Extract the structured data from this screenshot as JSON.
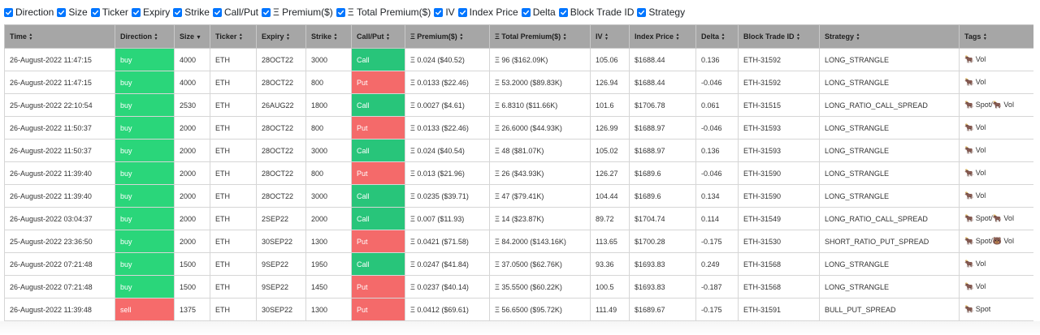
{
  "toggles": [
    {
      "label": "Direction",
      "checked": true
    },
    {
      "label": "Size",
      "checked": true
    },
    {
      "label": "Ticker",
      "checked": true
    },
    {
      "label": "Expiry",
      "checked": true
    },
    {
      "label": "Strike",
      "checked": true
    },
    {
      "label": "Call/Put",
      "checked": true
    },
    {
      "label": "Ξ Premium($)",
      "checked": true
    },
    {
      "label": "Ξ Total Premium($)",
      "checked": true
    },
    {
      "label": "IV",
      "checked": true
    },
    {
      "label": "Index Price",
      "checked": true
    },
    {
      "label": "Delta",
      "checked": true
    },
    {
      "label": "Block Trade ID",
      "checked": true
    },
    {
      "label": "Strategy",
      "checked": true
    }
  ],
  "columns": [
    {
      "label": "Time",
      "sort": "both"
    },
    {
      "label": "Direction",
      "sort": "both"
    },
    {
      "label": "Size",
      "sort": "desc"
    },
    {
      "label": "Ticker",
      "sort": "both"
    },
    {
      "label": "Expiry",
      "sort": "both"
    },
    {
      "label": "Strike",
      "sort": "both"
    },
    {
      "label": "Call/Put",
      "sort": "both"
    },
    {
      "label": "Ξ Premium($)",
      "sort": "both"
    },
    {
      "label": "Ξ Total Premium($)",
      "sort": "both"
    },
    {
      "label": "IV",
      "sort": "both"
    },
    {
      "label": "Index Price",
      "sort": "both"
    },
    {
      "label": "Delta",
      "sort": "both"
    },
    {
      "label": "Block Trade ID",
      "sort": "both"
    },
    {
      "label": "Strategy",
      "sort": "both"
    },
    {
      "label": "Tags",
      "sort": "both"
    }
  ],
  "rows": [
    [
      "26-August-2022 11:47:15",
      "buy",
      "4000",
      "ETH",
      "28OCT22",
      "3000",
      "Call",
      "Ξ 0.024 ($40.52)",
      "Ξ 96 ($162.09K)",
      "105.06",
      "$1688.44",
      "0.136",
      "ETH-31592",
      "LONG_STRANGLE",
      "🐂 Vol"
    ],
    [
      "26-August-2022 11:47:15",
      "buy",
      "4000",
      "ETH",
      "28OCT22",
      "800",
      "Put",
      "Ξ 0.0133 ($22.46)",
      "Ξ 53.2000 ($89.83K)",
      "126.94",
      "$1688.44",
      "-0.046",
      "ETH-31592",
      "LONG_STRANGLE",
      "🐂 Vol"
    ],
    [
      "25-August-2022 22:10:54",
      "buy",
      "2530",
      "ETH",
      "26AUG22",
      "1800",
      "Call",
      "Ξ 0.0027 ($4.61)",
      "Ξ 6.8310 ($11.66K)",
      "101.6",
      "$1706.78",
      "0.061",
      "ETH-31515",
      "LONG_RATIO_CALL_SPREAD",
      "🐂 Spot/🐂 Vol"
    ],
    [
      "26-August-2022 11:50:37",
      "buy",
      "2000",
      "ETH",
      "28OCT22",
      "800",
      "Put",
      "Ξ 0.0133 ($22.46)",
      "Ξ 26.6000 ($44.93K)",
      "126.99",
      "$1688.97",
      "-0.046",
      "ETH-31593",
      "LONG_STRANGLE",
      "🐂 Vol"
    ],
    [
      "26-August-2022 11:50:37",
      "buy",
      "2000",
      "ETH",
      "28OCT22",
      "3000",
      "Call",
      "Ξ 0.024 ($40.54)",
      "Ξ 48 ($81.07K)",
      "105.02",
      "$1688.97",
      "0.136",
      "ETH-31593",
      "LONG_STRANGLE",
      "🐂 Vol"
    ],
    [
      "26-August-2022 11:39:40",
      "buy",
      "2000",
      "ETH",
      "28OCT22",
      "800",
      "Put",
      "Ξ 0.013 ($21.96)",
      "Ξ 26 ($43.93K)",
      "126.27",
      "$1689.6",
      "-0.046",
      "ETH-31590",
      "LONG_STRANGLE",
      "🐂 Vol"
    ],
    [
      "26-August-2022 11:39:40",
      "buy",
      "2000",
      "ETH",
      "28OCT22",
      "3000",
      "Call",
      "Ξ 0.0235 ($39.71)",
      "Ξ 47 ($79.41K)",
      "104.44",
      "$1689.6",
      "0.134",
      "ETH-31590",
      "LONG_STRANGLE",
      "🐂 Vol"
    ],
    [
      "26-August-2022 03:04:37",
      "buy",
      "2000",
      "ETH",
      "2SEP22",
      "2000",
      "Call",
      "Ξ 0.007 ($11.93)",
      "Ξ 14 ($23.87K)",
      "89.72",
      "$1704.74",
      "0.114",
      "ETH-31549",
      "LONG_RATIO_CALL_SPREAD",
      "🐂 Spot/🐂 Vol"
    ],
    [
      "25-August-2022 23:36:50",
      "buy",
      "2000",
      "ETH",
      "30SEP22",
      "1300",
      "Put",
      "Ξ 0.0421 ($71.58)",
      "Ξ 84.2000 ($143.16K)",
      "113.65",
      "$1700.28",
      "-0.175",
      "ETH-31530",
      "SHORT_RATIO_PUT_SPREAD",
      "🐂 Spot/🐻 Vol"
    ],
    [
      "26-August-2022 07:21:48",
      "buy",
      "1500",
      "ETH",
      "9SEP22",
      "1950",
      "Call",
      "Ξ 0.0247 ($41.84)",
      "Ξ 37.0500 ($62.76K)",
      "93.36",
      "$1693.83",
      "0.249",
      "ETH-31568",
      "LONG_STRANGLE",
      "🐂 Vol"
    ],
    [
      "26-August-2022 07:21:48",
      "buy",
      "1500",
      "ETH",
      "9SEP22",
      "1450",
      "Put",
      "Ξ 0.0237 ($40.14)",
      "Ξ 35.5500 ($60.22K)",
      "100.5",
      "$1693.83",
      "-0.187",
      "ETH-31568",
      "LONG_STRANGLE",
      "🐂 Vol"
    ],
    [
      "26-August-2022 11:39:48",
      "sell",
      "1375",
      "ETH",
      "30SEP22",
      "1300",
      "Put",
      "Ξ 0.0412 ($69.61)",
      "Ξ 56.6500 ($95.72K)",
      "111.49",
      "$1689.67",
      "-0.175",
      "ETH-31591",
      "BULL_PUT_SPREAD",
      "🐂 Spot"
    ]
  ]
}
